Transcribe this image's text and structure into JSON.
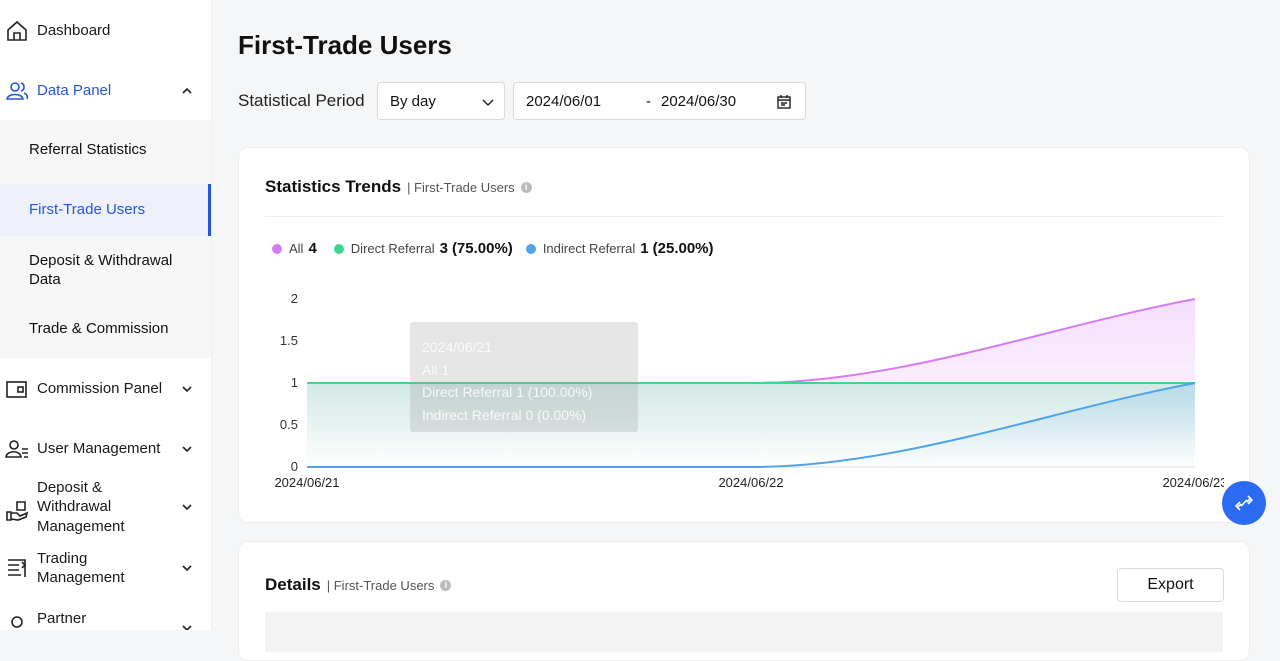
{
  "sidebar": {
    "items": [
      "Dashboard",
      "Data Panel",
      "Commission Panel",
      "User Management",
      "Deposit & Withdrawal Management",
      "Trading Management",
      "Partner"
    ],
    "subitems": [
      "Referral Statistics",
      "First-Trade Users",
      "Deposit & Withdrawal Data",
      "Trade & Commission"
    ]
  },
  "page_title": "First-Trade Users",
  "filters": {
    "label": "Statistical Period",
    "period": "By day",
    "start": "2024/06/01",
    "separator": "-",
    "end": "2024/06/30"
  },
  "trends": {
    "title": "Statistics Trends",
    "subtitle": "| First-Trade Users",
    "tooltip": {
      "title": "2024/06/21",
      "items": [
        "All 1",
        "Direct Referral 1 (100.00%)",
        "Indirect Referral 0 (0.00%)"
      ]
    }
  },
  "chart_data": {
    "type": "line",
    "categories": [
      "2024/06/21",
      "2024/06/22",
      "2024/06/23"
    ],
    "series": [
      {
        "name": "All",
        "color": "#d47df2",
        "values": [
          1,
          1,
          2
        ],
        "total": 4
      },
      {
        "name": "Direct Referral",
        "color": "#3fd68e",
        "values": [
          1,
          1,
          1
        ],
        "total": 3,
        "share": "(75.00%)"
      },
      {
        "name": "Indirect Referral",
        "color": "#4fa3ec",
        "values": [
          0,
          0,
          1
        ],
        "total": 1,
        "share": "(25.00%)"
      }
    ],
    "ylim": [
      0,
      2
    ],
    "yticks": [
      0,
      0.5,
      1,
      1.5,
      2
    ],
    "area": true
  },
  "details": {
    "title": "Details",
    "subtitle": "| First-Trade Users",
    "export": "Export"
  }
}
